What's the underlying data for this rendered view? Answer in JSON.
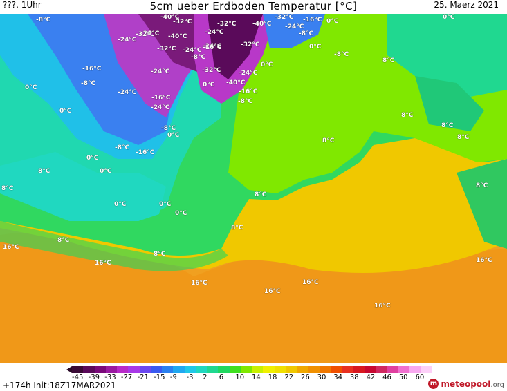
{
  "header": {
    "left_text": "???, 1Uhr",
    "title": "5cm ueber Erdboden Temperatur [°C]",
    "date": "25. Maerz 2021"
  },
  "map_labels": [
    "-8°C",
    "-40°C",
    "-32°C",
    "-32°C",
    "-16°C",
    "0°C",
    "0°C",
    "-32°C",
    "-24°C",
    "-40°C",
    "-24°C",
    "-24°C",
    "-8°C",
    "-24°C",
    "-32°C",
    "-40°C",
    "-32°C",
    "-24°C",
    "-32°C",
    "-24°C",
    "-8°C",
    "-16°C",
    "0°C",
    "-8°C",
    "8°C",
    "-16°C",
    "-24°C",
    "-32°C",
    "-24°C",
    "0°C",
    "-8°C",
    "0°C",
    "-40°C",
    "-16°C",
    "-24°C",
    "-16°C",
    "-8°C",
    "0°C",
    "-24°C",
    "-8°C",
    "8°C",
    "0°C",
    "8°C",
    "-8°C",
    "-16°C",
    "8°C",
    "0°C",
    "8°C",
    "0°C",
    "8°C",
    "0°C",
    "8°C",
    "8°C",
    "0°C",
    "0°C",
    "0°C",
    "8°C",
    "16°C",
    "8°C",
    "8°C",
    "8°C",
    "16°C",
    "16°C",
    "16°C",
    "16°C",
    "16°C",
    "16°C"
  ],
  "colorbar": {
    "colors": [
      "#3a0a36",
      "#5a0a5a",
      "#7a0a7a",
      "#9a1aa0",
      "#b82ac8",
      "#a838e8",
      "#6a48f0",
      "#3a5af0",
      "#2a80f0",
      "#20a8f0",
      "#20c8e8",
      "#20d8c0",
      "#20d890",
      "#20d860",
      "#40e020",
      "#80e800",
      "#c8f000",
      "#f0f000",
      "#f0e000",
      "#f0c800",
      "#f0a800",
      "#f09000",
      "#f07800",
      "#f05000",
      "#e83020",
      "#d81820",
      "#c80830",
      "#d02860",
      "#e040a0",
      "#f070d0",
      "#f8a8f0",
      "#fcd0f8"
    ],
    "ticks": [
      "-45",
      "-39",
      "-33",
      "-27",
      "-21",
      "-15",
      "-9",
      "-3",
      "2",
      "6",
      "10",
      "14",
      "18",
      "22",
      "26",
      "30",
      "34",
      "38",
      "42",
      "46",
      "50",
      "60"
    ]
  },
  "footer": {
    "init": "+174h  Init:18Z17MAR2021",
    "brand": "meteopool",
    "brand_suffix": ".org",
    "logo_letter": "m"
  }
}
